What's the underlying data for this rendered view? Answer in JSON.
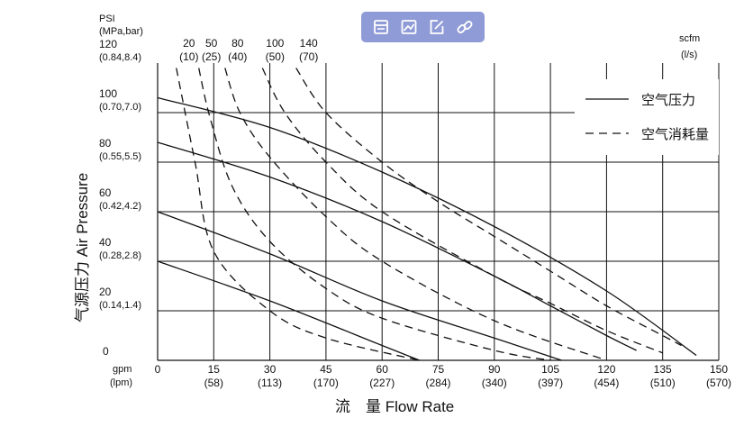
{
  "toolbar": {
    "buttons": [
      {
        "name": "copy-icon"
      },
      {
        "name": "image-icon"
      },
      {
        "name": "edit-icon"
      },
      {
        "name": "link-icon"
      }
    ]
  },
  "chart_data": {
    "type": "line",
    "x_unit_primary": "gpm",
    "x_unit_secondary": "(lpm)",
    "xlim": [
      0,
      150
    ],
    "x_ticks": [
      {
        "v": 0,
        "primary": "0",
        "secondary": ""
      },
      {
        "v": 15,
        "primary": "15",
        "secondary": "(58)"
      },
      {
        "v": 30,
        "primary": "30",
        "secondary": "(113)"
      },
      {
        "v": 45,
        "primary": "45",
        "secondary": "(170)"
      },
      {
        "v": 60,
        "primary": "60",
        "secondary": "(227)"
      },
      {
        "v": 75,
        "primary": "75",
        "secondary": "(284)"
      },
      {
        "v": 90,
        "primary": "90",
        "secondary": "(340)"
      },
      {
        "v": 105,
        "primary": "105",
        "secondary": "(397)"
      },
      {
        "v": 120,
        "primary": "120",
        "secondary": "(454)"
      },
      {
        "v": 135,
        "primary": "135",
        "secondary": "(510)"
      },
      {
        "v": 150,
        "primary": "150",
        "secondary": "(570)"
      }
    ],
    "x_label": "流　量  Flow Rate",
    "y_unit_primary": "PSI",
    "y_unit_secondary": "(MPa,bar)",
    "ylim": [
      0,
      120
    ],
    "y_ticks": [
      {
        "v": 0,
        "primary": "0",
        "secondary": ""
      },
      {
        "v": 20,
        "primary": "20",
        "secondary": "(0.14,1.4)"
      },
      {
        "v": 40,
        "primary": "40",
        "secondary": "(0.28,2.8)"
      },
      {
        "v": 60,
        "primary": "60",
        "secondary": "(0.42,4.2)"
      },
      {
        "v": 80,
        "primary": "80",
        "secondary": "(0.55,5.5)"
      },
      {
        "v": 100,
        "primary": "100",
        "secondary": "(0.70,7.0)"
      },
      {
        "v": 120,
        "primary": "120",
        "secondary": "(0.84,8.4)"
      }
    ],
    "y_label": "气源压力  Air Pressure",
    "scfm_unit": "scfm",
    "scfm_unit_secondary": "(l/s)",
    "scfm_ticks": [
      {
        "x": 5,
        "primary": "20",
        "secondary": "(10)"
      },
      {
        "x": 11,
        "primary": "50",
        "secondary": "(25)"
      },
      {
        "x": 18,
        "primary": "80",
        "secondary": "(40)"
      },
      {
        "x": 28,
        "primary": "100",
        "secondary": "(50)"
      },
      {
        "x": 37,
        "primary": "140",
        "secondary": "(70)"
      }
    ],
    "legend": {
      "placement": "top-right",
      "solid_label": "空气压力",
      "dashed_label": "空气消耗量"
    },
    "grid": true,
    "series": [
      {
        "style": "solid",
        "points": [
          [
            0,
            40
          ],
          [
            30,
            24
          ],
          [
            60,
            6
          ],
          [
            70,
            0
          ]
        ]
      },
      {
        "style": "solid",
        "points": [
          [
            0,
            60
          ],
          [
            30,
            43
          ],
          [
            60,
            24
          ],
          [
            90,
            9
          ],
          [
            108,
            0
          ]
        ]
      },
      {
        "style": "solid",
        "points": [
          [
            0,
            88
          ],
          [
            30,
            74
          ],
          [
            60,
            56
          ],
          [
            90,
            34
          ],
          [
            105,
            22
          ],
          [
            120,
            10
          ],
          [
            128,
            4
          ]
        ]
      },
      {
        "style": "solid",
        "points": [
          [
            0,
            106
          ],
          [
            30,
            94
          ],
          [
            60,
            76
          ],
          [
            90,
            54
          ],
          [
            120,
            28
          ],
          [
            144,
            2
          ]
        ]
      },
      {
        "style": "dashed",
        "points": [
          [
            5,
            118
          ],
          [
            10,
            80
          ],
          [
            15,
            44
          ],
          [
            30,
            20
          ],
          [
            45,
            9
          ],
          [
            70,
            0
          ]
        ]
      },
      {
        "style": "dashed",
        "points": [
          [
            11,
            118
          ],
          [
            14,
            98
          ],
          [
            20,
            70
          ],
          [
            30,
            48
          ],
          [
            45,
            29
          ],
          [
            60,
            17
          ],
          [
            90,
            4
          ],
          [
            105,
            0
          ]
        ]
      },
      {
        "style": "dashed",
        "points": [
          [
            18,
            118
          ],
          [
            22,
            100
          ],
          [
            30,
            82
          ],
          [
            45,
            58
          ],
          [
            60,
            40
          ],
          [
            90,
            16
          ],
          [
            120,
            0
          ]
        ]
      },
      {
        "style": "dashed",
        "points": [
          [
            28,
            118
          ],
          [
            34,
            100
          ],
          [
            45,
            80
          ],
          [
            60,
            60
          ],
          [
            90,
            34
          ],
          [
            105,
            23
          ],
          [
            120,
            12
          ],
          [
            135,
            3
          ]
        ]
      },
      {
        "style": "dashed",
        "points": [
          [
            37,
            118
          ],
          [
            45,
            100
          ],
          [
            60,
            80
          ],
          [
            75,
            64
          ],
          [
            90,
            50
          ],
          [
            105,
            36
          ],
          [
            120,
            22
          ],
          [
            135,
            10
          ],
          [
            140,
            6
          ]
        ]
      }
    ]
  }
}
